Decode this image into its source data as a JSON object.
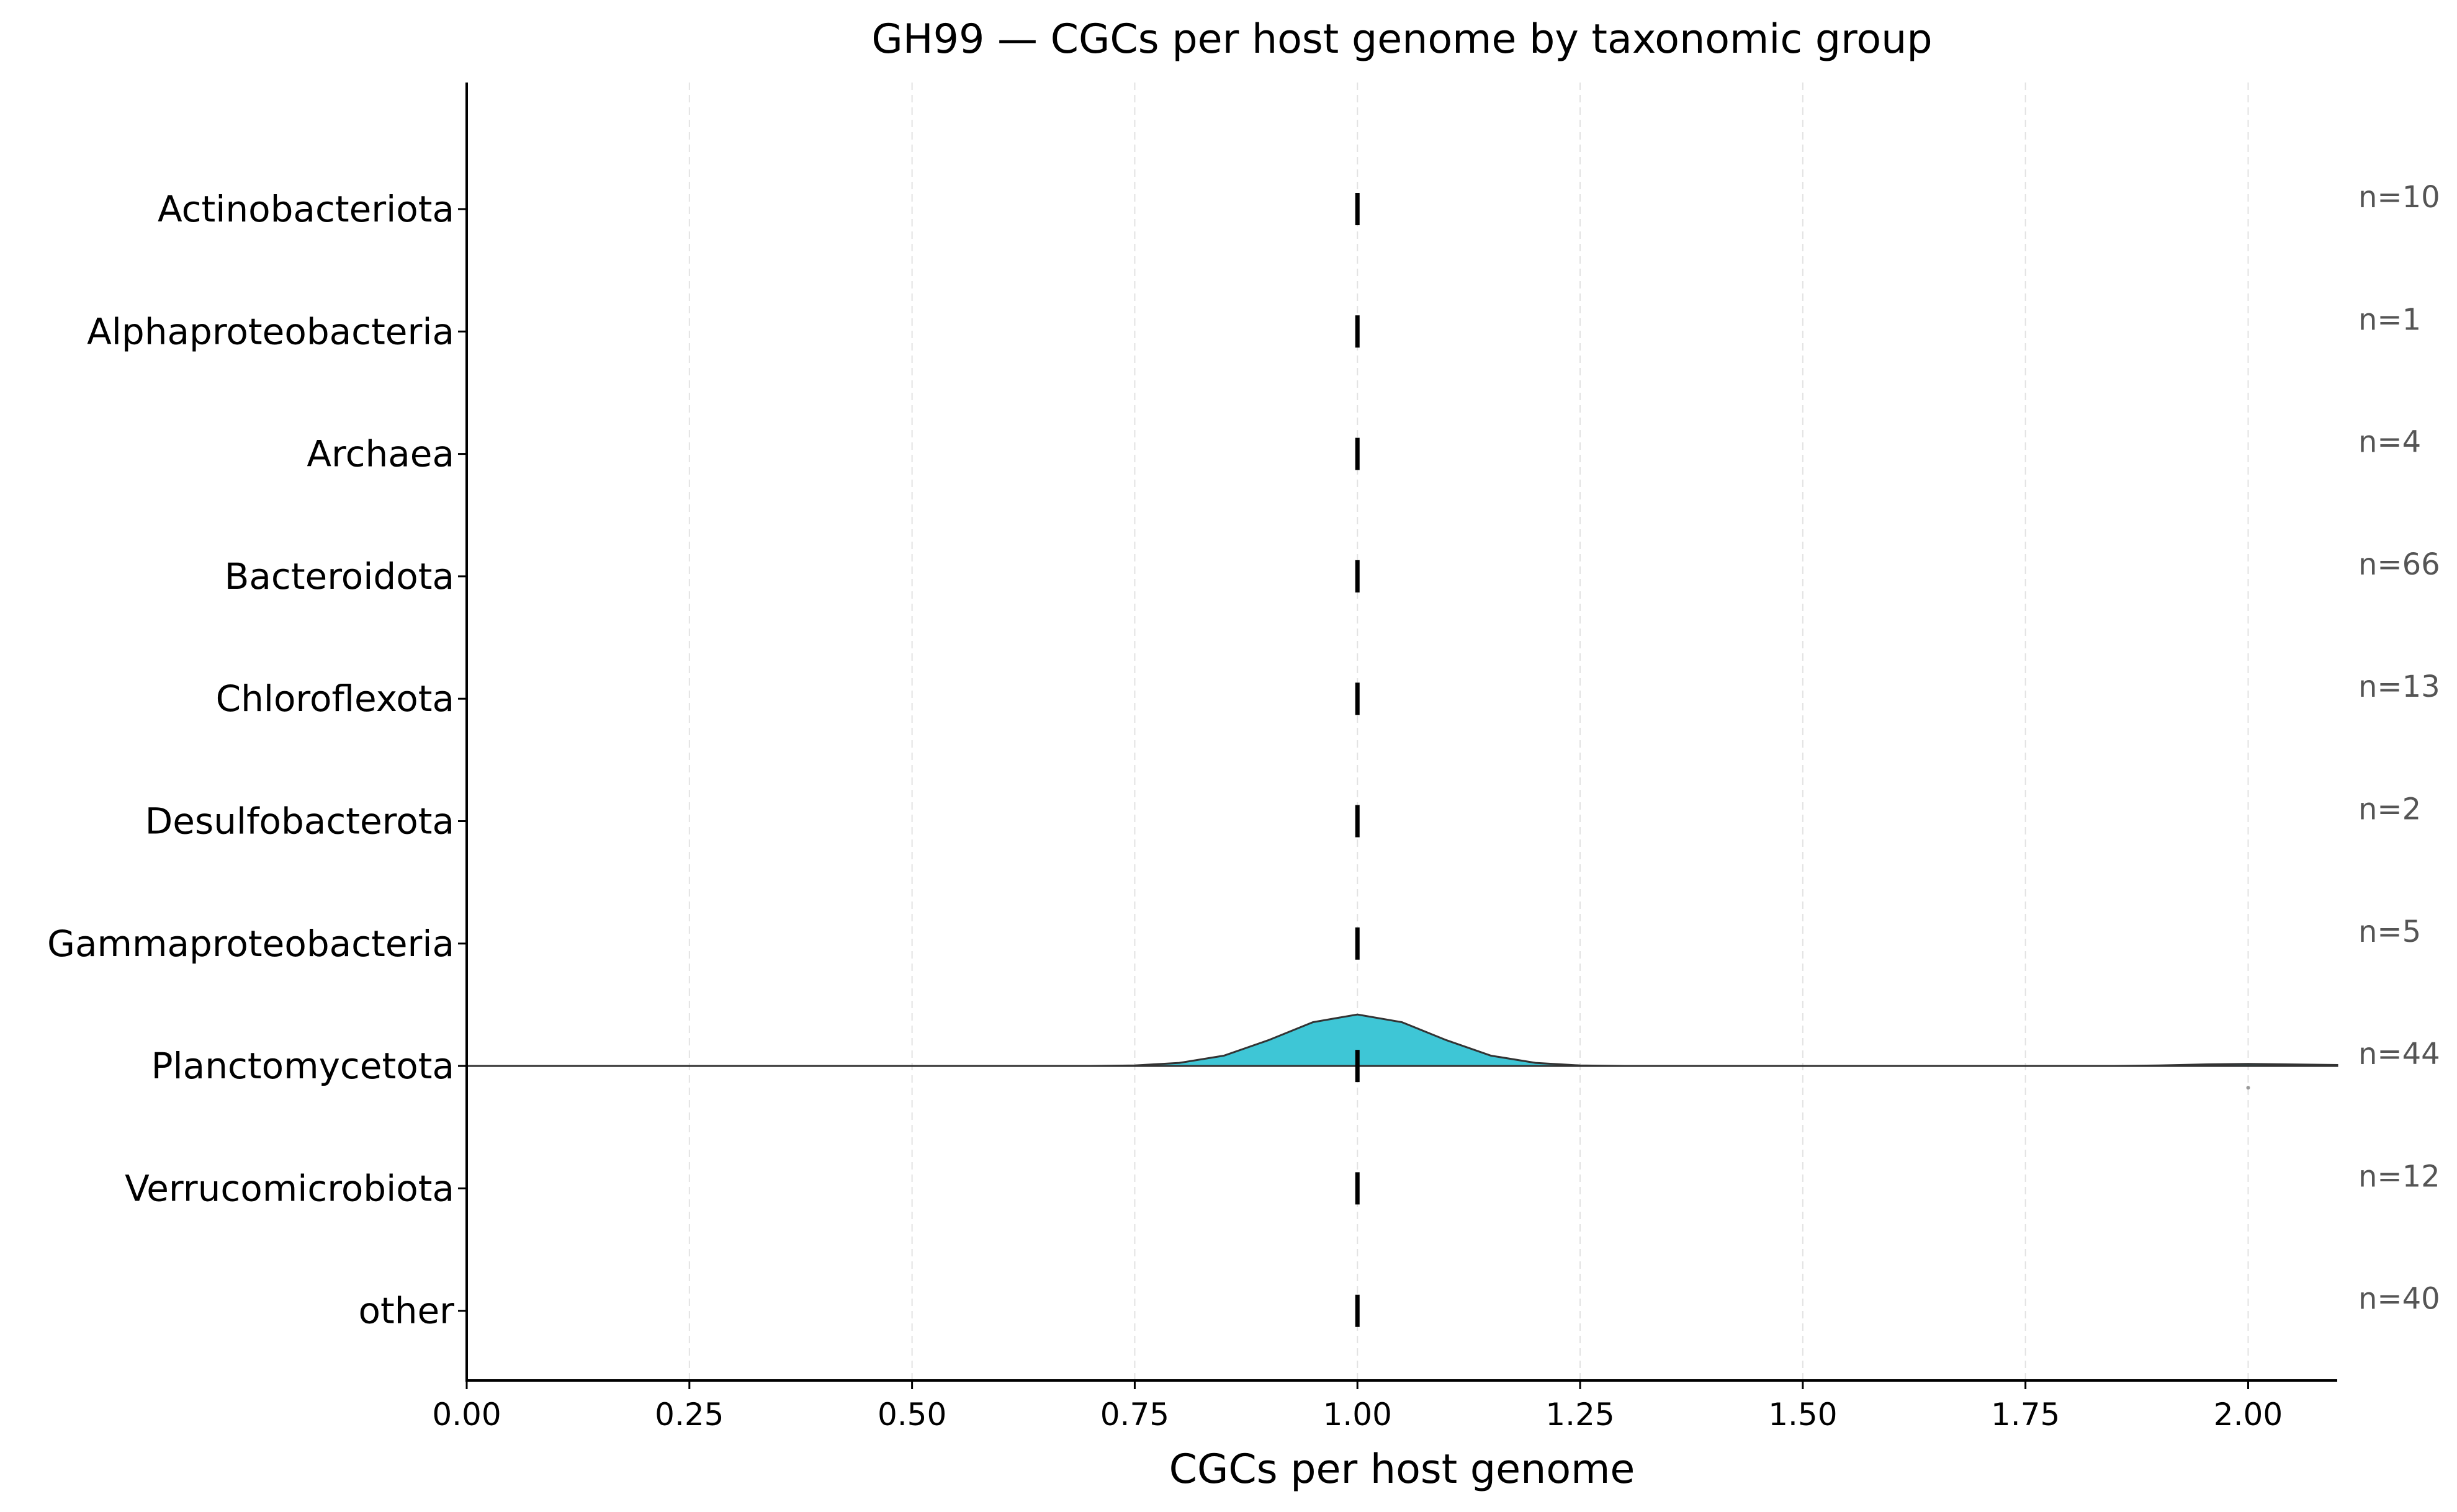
{
  "chart_data": {
    "type": "ridgeline",
    "title": "GH99 — CGCs per host genome by taxonomic group",
    "xlabel": "CGCs per host genome",
    "ylabel": "",
    "xlim": [
      0,
      2.1
    ],
    "xticks": [
      "0.00",
      "0.25",
      "0.50",
      "0.75",
      "1.00",
      "1.25",
      "1.50",
      "1.75",
      "2.00"
    ],
    "grid": "vertical-dashed",
    "fill_color": "#3ec6d6",
    "groups": [
      {
        "name": "Actinobacteriota",
        "n_label": "n=10",
        "median": 1.0,
        "has_density": false
      },
      {
        "name": "Alphaproteobacteria",
        "n_label": "n=1",
        "median": 1.0,
        "has_density": false
      },
      {
        "name": "Archaea",
        "n_label": "n=4",
        "median": 1.0,
        "has_density": false
      },
      {
        "name": "Bacteroidota",
        "n_label": "n=66",
        "median": 1.0,
        "has_density": false
      },
      {
        "name": "Chloroflexota",
        "n_label": "n=13",
        "median": 1.0,
        "has_density": false
      },
      {
        "name": "Desulfobacterota",
        "n_label": "n=2",
        "median": 1.0,
        "has_density": false
      },
      {
        "name": "Gammaproteobacteria",
        "n_label": "n=5",
        "median": 1.0,
        "has_density": false
      },
      {
        "name": "Planctomycetota",
        "n_label": "n=44",
        "median": 1.0,
        "has_density": true,
        "density": {
          "x": [
            0.0,
            0.5,
            0.7,
            0.75,
            0.8,
            0.85,
            0.9,
            0.95,
            1.0,
            1.05,
            1.1,
            1.15,
            1.2,
            1.25,
            1.3,
            1.5,
            1.7,
            1.85,
            1.9,
            1.95,
            2.0,
            2.05,
            2.1
          ],
          "y": [
            0.0,
            0.0,
            0.0,
            0.01,
            0.06,
            0.2,
            0.5,
            0.85,
            1.0,
            0.85,
            0.5,
            0.2,
            0.06,
            0.01,
            0.0,
            0.0,
            0.0,
            0.0,
            0.01,
            0.03,
            0.04,
            0.03,
            0.02
          ]
        },
        "outliers": [
          2.0
        ]
      },
      {
        "name": "Verrucomicrobiota",
        "n_label": "n=12",
        "median": 1.0,
        "has_density": false
      },
      {
        "name": "other",
        "n_label": "n=40",
        "median": 1.0,
        "has_density": false
      }
    ]
  }
}
